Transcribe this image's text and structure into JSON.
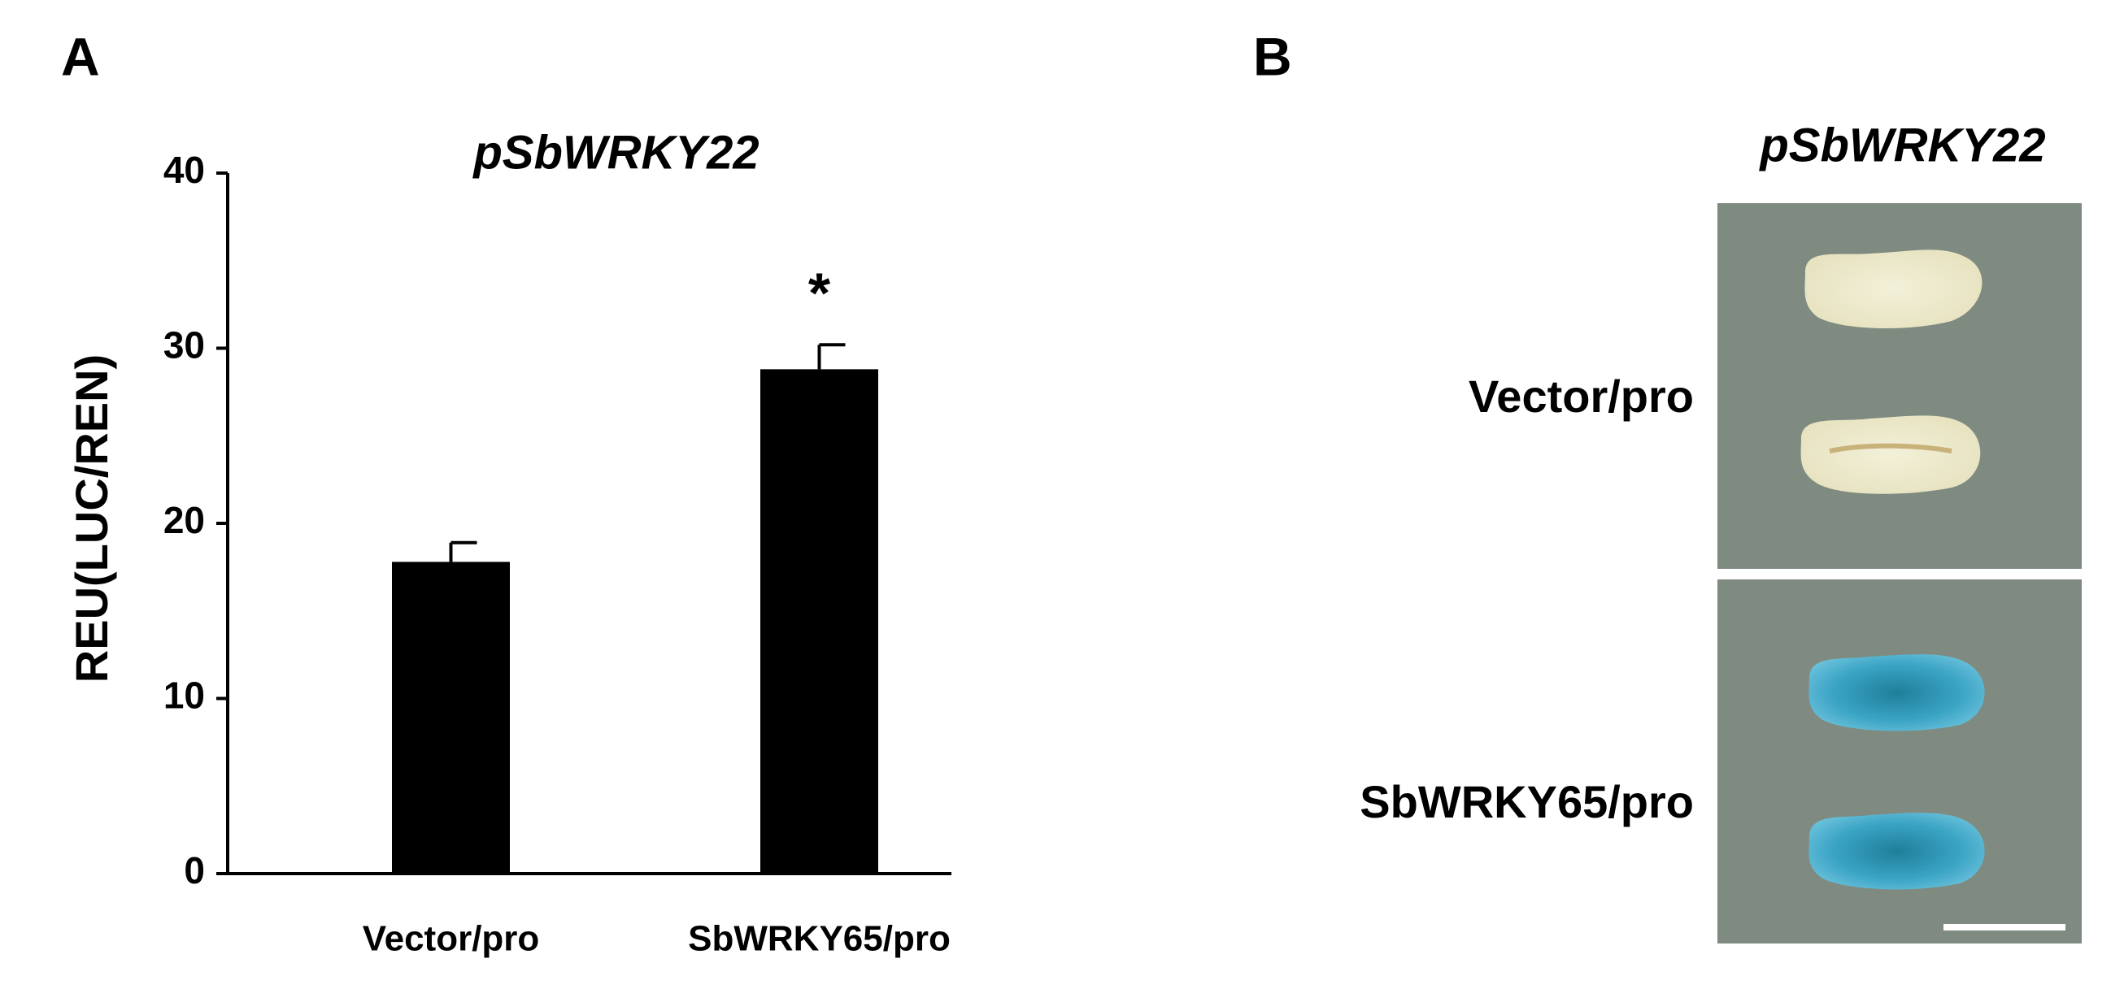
{
  "panels": {
    "a": "A",
    "b": "B"
  },
  "chart_data": {
    "type": "bar",
    "title": "pSbWRKY22",
    "y_label": "REU(LUC/REN)",
    "categories": [
      "Vector/pro",
      "SbWRKY65/pro"
    ],
    "values": [
      17.8,
      28.8
    ],
    "errors": [
      1.1,
      1.4
    ],
    "significance": [
      null,
      "*"
    ],
    "color": "#000000",
    "ylim": [
      0,
      40
    ],
    "yticks": [
      0,
      10,
      20,
      30,
      40
    ],
    "grid": false
  },
  "image_panel": {
    "title": "pSbWRKY22",
    "rows": [
      "Vector/pro",
      "SbWRKY65/pro"
    ]
  }
}
